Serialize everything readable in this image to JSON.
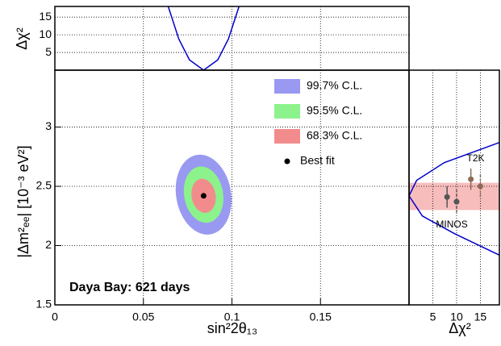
{
  "chart_data": {
    "type": "contour",
    "title": "Daya Bay: 621 days",
    "x_label": "sin²2θ₁₃",
    "y_label": "|Δm²ₑₑ| [10⁻³ eV²]",
    "top_y_label": "Δχ²",
    "right_x_label": "Δχ²",
    "xlim": [
      0,
      0.2
    ],
    "xticks": [
      0,
      0.05,
      0.1,
      0.15
    ],
    "ylim": [
      1.5,
      3.48
    ],
    "yticks": [
      1.5,
      2,
      2.5,
      3
    ],
    "top_ylim": [
      0,
      18
    ],
    "top_yticks": [
      5,
      10,
      15
    ],
    "right_xlim": [
      0,
      19
    ],
    "right_xticks": [
      5,
      10,
      15
    ],
    "grid": true,
    "contours": [
      {
        "name": "99.7% C.L.",
        "color": "#9999f2",
        "x": 0.084,
        "y": 2.43,
        "x_half": 0.0155,
        "y_half": 0.34
      },
      {
        "name": "95.5% C.L.",
        "color": "#8cf28c",
        "x": 0.084,
        "y": 2.43,
        "x_half": 0.011,
        "y_half": 0.24
      },
      {
        "name": "68.3% C.L.",
        "color": "#f28c8c",
        "x": 0.084,
        "y": 2.42,
        "x_half": 0.0068,
        "y_half": 0.145
      }
    ],
    "best_fit": {
      "name": "Best fit",
      "x": 0.084,
      "y": 2.42
    },
    "top_curve": {
      "color": "#0000cc",
      "x": [
        0.064,
        0.07,
        0.076,
        0.084,
        0.092,
        0.098,
        0.104
      ],
      "values": [
        18,
        8.8,
        2.9,
        0,
        2.9,
        8.8,
        18
      ]
    },
    "right_curve": {
      "color": "#0000cc",
      "y": [
        1.92,
        2.1,
        2.25,
        2.42,
        2.55,
        2.7,
        2.87
      ],
      "values": [
        19,
        9.6,
        2.8,
        0,
        1.6,
        7.4,
        19
      ]
    },
    "band": {
      "color": "#f7bcbc",
      "y": [
        2.3,
        2.53
      ]
    },
    "experiments": [
      {
        "name": "MINOS",
        "color": "#555555",
        "points": [
          {
            "chi2": 8,
            "y": 2.41,
            "err": 0.09,
            "dashed": false
          },
          {
            "chi2": 10,
            "y": 2.37,
            "err": 0.1,
            "dashed": true
          }
        ]
      },
      {
        "name": "T2K",
        "color": "#8b6b55",
        "points": [
          {
            "chi2": 13,
            "y": 2.56,
            "err": 0.09,
            "dashed": false
          },
          {
            "chi2": 15,
            "y": 2.5,
            "err": 0.1,
            "dashed": true
          }
        ]
      }
    ]
  }
}
